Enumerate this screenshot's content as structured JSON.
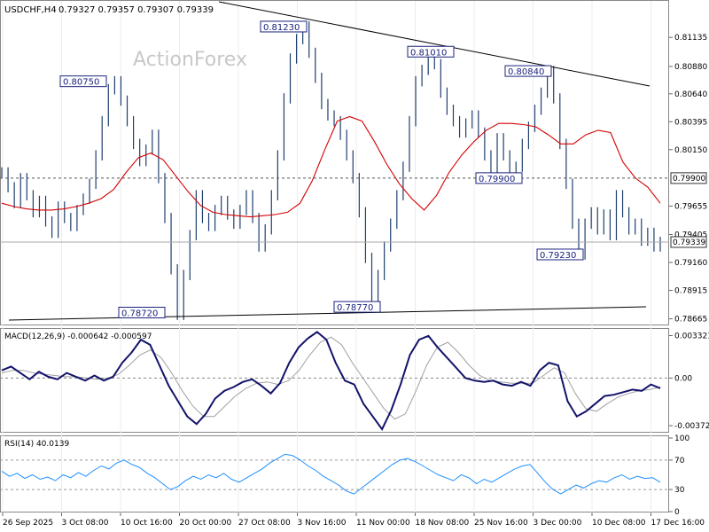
{
  "header": {
    "symbol": "USDCHF,H4",
    "ohlc": "0.79327 0.79357 0.79307 0.79339"
  },
  "watermark": "ActionForex",
  "chart_data": {
    "type": "line",
    "main": {
      "y_ticks": [
        "0.81135",
        "0.80880",
        "0.80640",
        "0.80395",
        "0.80150",
        "0.79655",
        "0.79405",
        "0.79160",
        "0.78915",
        "0.78665"
      ],
      "y_tick_values": [
        0.81135,
        0.8088,
        0.8064,
        0.80395,
        0.8015,
        0.79655,
        0.79405,
        0.7916,
        0.78915,
        0.78665
      ],
      "ylim": [
        0.78615,
        0.8144
      ],
      "price_label": "0.79339",
      "price_value": 0.79339,
      "level_label": "0.79900",
      "level_value": 0.799,
      "annotations": [
        {
          "text": "0.80750",
          "value": 0.8075
        },
        {
          "text": "0.81230",
          "value": 0.8123
        },
        {
          "text": "0.81010",
          "value": 0.8101
        },
        {
          "text": "0.80840",
          "value": 0.8084
        },
        {
          "text": "0.79900",
          "value": 0.799
        },
        {
          "text": "0.79230",
          "value": 0.7923
        },
        {
          "text": "0.78720",
          "value": 0.7872
        },
        {
          "text": "0.78770",
          "value": 0.7877
        }
      ],
      "price_series": [
        0.7995,
        0.7982,
        0.7968,
        0.799,
        0.7975,
        0.796,
        0.797,
        0.7952,
        0.7942,
        0.7965,
        0.7955,
        0.7948,
        0.7962,
        0.7972,
        0.7985,
        0.801,
        0.804,
        0.8068,
        0.8075,
        0.8058,
        0.804,
        0.802,
        0.8005,
        0.8015,
        0.8028,
        0.799,
        0.7955,
        0.791,
        0.787,
        0.7905,
        0.794,
        0.7975,
        0.7955,
        0.7948,
        0.7962,
        0.797,
        0.7958,
        0.795,
        0.7962,
        0.7975,
        0.7955,
        0.793,
        0.7945,
        0.7975,
        0.801,
        0.806,
        0.8095,
        0.8112,
        0.8123,
        0.81,
        0.8078,
        0.8055,
        0.8045,
        0.804,
        0.8028,
        0.801,
        0.799,
        0.796,
        0.792,
        0.7877,
        0.7905,
        0.793,
        0.795,
        0.7975,
        0.8,
        0.804,
        0.8075,
        0.8085,
        0.8101,
        0.809,
        0.8065,
        0.805,
        0.804,
        0.803,
        0.8038,
        0.8045,
        0.803,
        0.801,
        0.7995,
        0.8025,
        0.801,
        0.799,
        0.8,
        0.802,
        0.8035,
        0.805,
        0.8065,
        0.8084,
        0.806,
        0.802,
        0.7985,
        0.795,
        0.7923,
        0.795,
        0.796,
        0.7945,
        0.7958,
        0.794,
        0.7975,
        0.796,
        0.7945,
        0.795,
        0.7935,
        0.7942,
        0.793,
        0.7934
      ],
      "ma_series": [
        0.7968,
        0.7965,
        0.7963,
        0.7962,
        0.7962,
        0.7963,
        0.7965,
        0.7968,
        0.7972,
        0.798,
        0.7995,
        0.8008,
        0.8012,
        0.8006,
        0.7992,
        0.7978,
        0.7966,
        0.796,
        0.7958,
        0.7957,
        0.7956,
        0.7957,
        0.7958,
        0.796,
        0.7968,
        0.7988,
        0.8015,
        0.804,
        0.8044,
        0.804,
        0.8022,
        0.8002,
        0.7985,
        0.7972,
        0.7962,
        0.7975,
        0.7995,
        0.801,
        0.8022,
        0.8032,
        0.8038,
        0.8038,
        0.8037,
        0.8035,
        0.8028,
        0.802,
        0.802,
        0.8028,
        0.8032,
        0.803,
        0.8004,
        0.799,
        0.7982,
        0.7968
      ]
    },
    "macd": {
      "label": "MACD(12,26,9) -0.000642 -0.000597",
      "y_ticks": [
        "0.003321",
        "0.00",
        "-0.003723"
      ],
      "y_tick_values": [
        0.003321,
        0.0,
        -0.003723
      ],
      "ylim": [
        -0.0042,
        0.0037
      ],
      "current_label": "-0.00",
      "macd_series": [
        0.0006,
        0.0009,
        0.0004,
        -0.0001,
        0.0005,
        0.0001,
        -0.0001,
        0.0004,
        0.0001,
        -0.0002,
        0.0002,
        -0.0002,
        0.0001,
        0.0012,
        0.002,
        0.003,
        0.0026,
        0.001,
        -0.0006,
        -0.0018,
        -0.003,
        -0.0036,
        -0.0028,
        -0.0016,
        -0.001,
        -0.0007,
        -0.0003,
        -0.0001,
        -0.0006,
        -0.0012,
        -0.0004,
        0.0012,
        0.0024,
        0.0031,
        0.0036,
        0.003,
        0.0012,
        -0.0002,
        -0.0005,
        -0.002,
        -0.003,
        -0.004,
        -0.0025,
        -0.0005,
        0.0018,
        0.003,
        0.0033,
        0.0024,
        0.0016,
        0.0008,
        0.0,
        -0.0002,
        -0.0003,
        -0.0002,
        -0.0005,
        -0.0006,
        -0.0003,
        -0.0006,
        0.0006,
        0.0012,
        0.001,
        -0.0018,
        -0.003,
        -0.0026,
        -0.002,
        -0.0014,
        -0.0013,
        -0.0011,
        -0.0009,
        -0.001,
        -0.0005,
        -0.0008
      ],
      "signal_series": [
        0.0004,
        0.0006,
        0.0006,
        0.0004,
        0.0003,
        0.0002,
        0.0001,
        0.0001,
        0.0,
        -0.0001,
        0.0,
        0.0003,
        0.001,
        0.0018,
        0.0022,
        0.0016,
        0.0004,
        -0.001,
        -0.0022,
        -0.003,
        -0.003,
        -0.0022,
        -0.0014,
        -0.0008,
        -0.0004,
        -0.0003,
        -0.0005,
        -0.0002,
        0.0006,
        0.0018,
        0.0028,
        0.0032,
        0.0026,
        0.0012,
        0.0,
        -0.0012,
        -0.0024,
        -0.0032,
        -0.0028,
        -0.001,
        0.001,
        0.0024,
        0.0028,
        0.002,
        0.001,
        0.0002,
        -0.0002,
        -0.0003,
        -0.0004,
        -0.0004,
        -0.0004,
        0.0002,
        0.0008,
        0.0004,
        -0.0012,
        -0.0024,
        -0.0026,
        -0.002,
        -0.0015,
        -0.0012,
        -0.001,
        -0.0009,
        -0.0007
      ]
    },
    "rsi": {
      "label": "RSI(14) 40.0139",
      "y_ticks": [
        "100",
        "70",
        "30",
        "0"
      ],
      "y_tick_values": [
        100,
        70,
        30,
        0
      ],
      "ylim": [
        0,
        100
      ],
      "levels": [
        70,
        30
      ],
      "rsi_series": [
        55,
        48,
        52,
        45,
        50,
        44,
        47,
        42,
        50,
        46,
        53,
        48,
        56,
        62,
        58,
        66,
        70,
        64,
        60,
        52,
        46,
        38,
        30,
        34,
        42,
        48,
        44,
        50,
        46,
        52,
        44,
        40,
        46,
        52,
        58,
        66,
        72,
        78,
        76,
        70,
        62,
        56,
        48,
        42,
        36,
        28,
        24,
        32,
        40,
        48,
        56,
        64,
        70,
        72,
        68,
        62,
        56,
        50,
        46,
        42,
        50,
        46,
        38,
        44,
        40,
        46,
        52,
        58,
        62,
        64,
        52,
        40,
        30,
        24,
        30,
        36,
        32,
        38,
        42,
        40,
        46,
        50,
        44,
        48,
        45,
        46,
        40
      ],
      "current_label": "40.0139"
    },
    "x_ticks": [
      "26 Sep 2025",
      "3 Oct 08:00",
      "10 Oct 16:00",
      "20 Oct 00:00",
      "27 Oct 08:00",
      "3 Nov 16:00",
      "11 Nov 00:00",
      "18 Nov 08:00",
      "25 Nov 16:00",
      "3 Dec 00:00",
      "10 Dec 08:00",
      "17 Dec 16:00"
    ],
    "grid": true,
    "colors": {
      "candles": "#1f3f6e",
      "ma": "#d40000",
      "macd": "#13136b",
      "signal": "#a0a0a0",
      "rsi": "#1e90ff",
      "trendline": "#000000",
      "label_border": "#1a237e"
    }
  }
}
